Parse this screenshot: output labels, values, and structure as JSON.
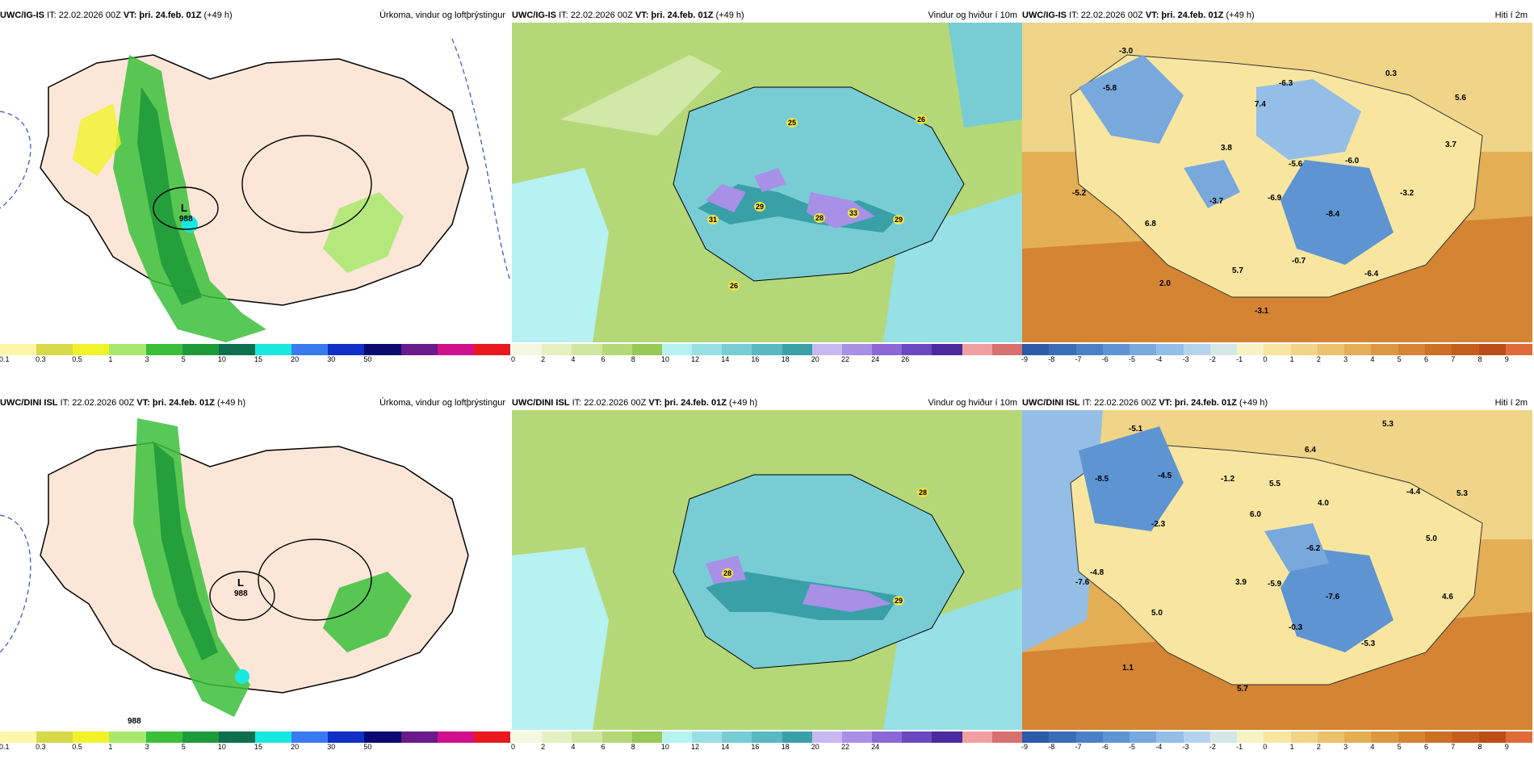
{
  "panels": {
    "p1": {
      "model": "UWC/IG-IS",
      "it": "IT: 22.02.2026 00Z",
      "vt_label": "VT:",
      "vt": "þri. 24.feb. 01Z",
      "lead": "(+49 h)",
      "title": "Úrkoma, vindur og loftþrýstingur",
      "low_letter": "L",
      "low_value": "988",
      "ticks": [
        "0.1",
        "0.3",
        "0.5",
        "1",
        "3",
        "5",
        "10",
        "15",
        "20",
        "30",
        "50"
      ]
    },
    "p2": {
      "model": "UWC/IG-IS",
      "it": "IT: 22.02.2026 00Z",
      "vt_label": "VT:",
      "vt": "þri. 24.feb. 01Z",
      "lead": "(+49 h)",
      "title": "Vindur og hviður í 10m",
      "gusts": [
        "25",
        "26",
        "31",
        "29",
        "28",
        "33",
        "29",
        "26"
      ],
      "ticks": [
        "0",
        "2",
        "4",
        "6",
        "8",
        "10",
        "12",
        "14",
        "16",
        "18",
        "20",
        "22",
        "24",
        "26"
      ]
    },
    "p3": {
      "model": "UWC/IG-IS",
      "it": "IT: 22.02.2026 00Z",
      "vt_label": "VT:",
      "vt": "þri. 24.feb. 01Z",
      "lead": "(+49 h)",
      "title": "Hiti í 2m",
      "temps": [
        "-3.0",
        "-5.8",
        "-6.3",
        "0.3",
        "5.6",
        "7.4",
        "3.8",
        "-5.6",
        "-6.0",
        "3.7",
        "-5.2",
        "-3.7",
        "-6.9",
        "-3.2",
        "-8.4",
        "6.8",
        "-0.7",
        "5.7",
        "2.0",
        "-6.4",
        "-3.1"
      ],
      "ticks": [
        "-9",
        "-8",
        "-7",
        "-6",
        "-5",
        "-4",
        "-3",
        "-2",
        "-1",
        "0",
        "1",
        "2",
        "3",
        "4",
        "5",
        "6",
        "7",
        "8",
        "9"
      ]
    },
    "p4": {
      "model": "UWC/DINI ISL",
      "it": "IT: 22.02.2026 00Z",
      "vt_label": "VT:",
      "vt": "þri. 24.feb. 01Z",
      "lead": "(+49 h)",
      "title": "Úrkoma, vindur og loftþrýstingur",
      "low_letter": "L",
      "low_value": "988",
      "low2_value": "988",
      "ticks": [
        "0.1",
        "0.3",
        "0.5",
        "1",
        "3",
        "5",
        "10",
        "15",
        "20",
        "30",
        "50"
      ]
    },
    "p5": {
      "model": "UWC/DINI ISL",
      "it": "IT: 22.02.2026 00Z",
      "vt_label": "VT:",
      "vt": "þri. 24.feb. 01Z",
      "lead": "(+49 h)",
      "title": "Vindur og hviður í 10m",
      "gusts": [
        "28",
        "28",
        "29"
      ],
      "ticks": [
        "0",
        "2",
        "4",
        "6",
        "8",
        "10",
        "12",
        "14",
        "16",
        "18",
        "20",
        "22",
        "24"
      ]
    },
    "p6": {
      "model": "UWC/DINI ISL",
      "it": "IT: 22.02.2026 00Z",
      "vt_label": "VT:",
      "vt": "þri. 24.feb. 01Z",
      "lead": "(+49 h)",
      "title": "Hiti í 2m",
      "temps": [
        "-5.1",
        "5.3",
        "-8.5",
        "-4.5",
        "-1.2",
        "6.4",
        "5.5",
        "4.0",
        "-4.4",
        "5.3",
        "6.0",
        "-2.3",
        "-6.2",
        "5.0",
        "-4.8",
        "-7.6",
        "3.9",
        "-5.9",
        "-7.6",
        "4.6",
        "5.0",
        "-0.3",
        "-5.3",
        "1.1",
        "5.7"
      ],
      "ticks": [
        "-9",
        "-8",
        "-7",
        "-6",
        "-5",
        "-4",
        "-3",
        "-2",
        "-1",
        "0",
        "1",
        "2",
        "3",
        "4",
        "5",
        "6",
        "7",
        "8",
        "9"
      ]
    }
  },
  "colors": {
    "precip": [
      "#fbf6a8",
      "#d8d84a",
      "#f2f22a",
      "#a8e86c",
      "#3bbf3b",
      "#1f9a3a",
      "#0e6e4e",
      "#18e8e0",
      "#3a7af0",
      "#1030c8",
      "#0a0a70",
      "#6a1a8a",
      "#d0108c",
      "#e8181e"
    ],
    "wind": [
      "#f4f8e0",
      "#e4f0c0",
      "#cfe6a0",
      "#b4d878",
      "#98c856",
      "#b6f2f2",
      "#96e0e6",
      "#78cdd4",
      "#5ab8c0",
      "#3aa0a8",
      "#c8b8f2",
      "#a890e6",
      "#8c68d6",
      "#6a48c0",
      "#4a2a9c",
      "#f0a0a0",
      "#d87070"
    ],
    "temp": [
      "#2c5aa8",
      "#3a6cb8",
      "#4c80c6",
      "#5e94d2",
      "#78a8dc",
      "#94bee6",
      "#b4d4ee",
      "#d4e6e8",
      "#f6f2c4",
      "#f8e6a0",
      "#f0d488",
      "#ecc26c",
      "#e4ae54",
      "#dc9840",
      "#d48432",
      "#cc7026",
      "#c45e1e",
      "#bc4c18",
      "#e06a3a"
    ]
  }
}
